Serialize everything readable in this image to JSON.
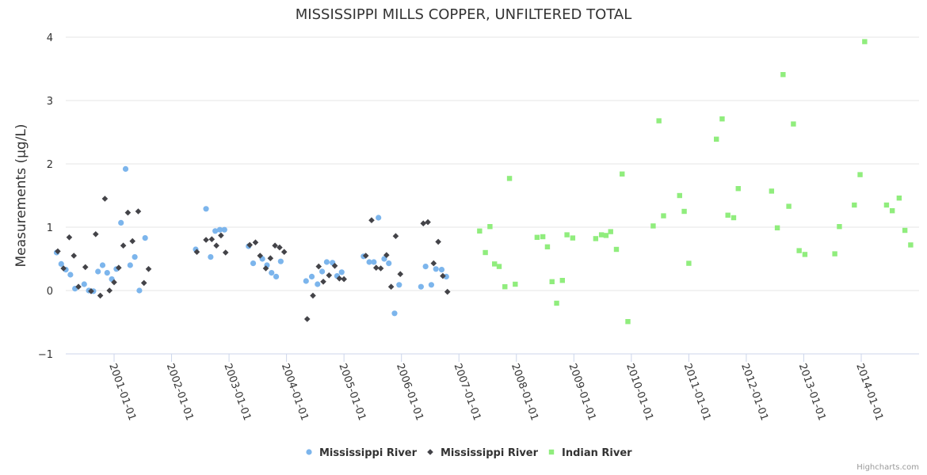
{
  "credits": "Highcharts.com",
  "chart_data": {
    "type": "scatter",
    "title": "MISSISSIPPI MILLS COPPER, UNFILTERED TOTAL",
    "ylabel": "Measurements (μg/L)",
    "xlabel": "",
    "ylim": [
      -1,
      4
    ],
    "yticks": [
      -1,
      0,
      1,
      2,
      3,
      4
    ],
    "yticklabels": [
      "−1",
      "0",
      "1",
      "2",
      "3",
      "4"
    ],
    "xlim": [
      2000.0,
      2015.0
    ],
    "xticks": [
      2001,
      2002,
      2003,
      2004,
      2005,
      2006,
      2007,
      2008,
      2009,
      2010,
      2011,
      2012,
      2013,
      2014
    ],
    "xticklabels": [
      "2001-01-01",
      "2002-01-01",
      "2003-01-01",
      "2004-01-01",
      "2005-01-01",
      "2006-01-01",
      "2007-01-01",
      "2008-01-01",
      "2009-01-01",
      "2010-01-01",
      "2011-01-01",
      "2012-01-01",
      "2013-01-01",
      "2014-01-01"
    ],
    "grid": true,
    "legend_position": "bottom-center",
    "series": [
      {
        "name": "Mississippi River",
        "marker": "circle",
        "color": "#7cb5ec",
        "points": [
          [
            2000.0,
            0.6
          ],
          [
            2000.08,
            0.42
          ],
          [
            2000.16,
            0.33
          ],
          [
            2000.24,
            0.25
          ],
          [
            2000.32,
            0.03
          ],
          [
            2000.48,
            0.1
          ],
          [
            2000.56,
            0.0
          ],
          [
            2000.64,
            -0.01
          ],
          [
            2000.72,
            0.3
          ],
          [
            2000.8,
            0.4
          ],
          [
            2000.88,
            0.28
          ],
          [
            2000.96,
            0.18
          ],
          [
            2001.04,
            0.34
          ],
          [
            2001.12,
            1.07
          ],
          [
            2001.2,
            1.92
          ],
          [
            2001.28,
            0.4
          ],
          [
            2001.36,
            0.53
          ],
          [
            2001.44,
            0.0
          ],
          [
            2001.54,
            0.83
          ],
          [
            2002.42,
            0.65
          ],
          [
            2002.6,
            1.29
          ],
          [
            2002.68,
            0.53
          ],
          [
            2002.76,
            0.94
          ],
          [
            2002.84,
            0.96
          ],
          [
            2002.92,
            0.96
          ],
          [
            2003.34,
            0.7
          ],
          [
            2003.42,
            0.43
          ],
          [
            2003.58,
            0.5
          ],
          [
            2003.66,
            0.4
          ],
          [
            2003.74,
            0.28
          ],
          [
            2003.82,
            0.22
          ],
          [
            2003.9,
            0.46
          ],
          [
            2004.34,
            0.15
          ],
          [
            2004.44,
            0.22
          ],
          [
            2004.54,
            0.1
          ],
          [
            2004.62,
            0.3
          ],
          [
            2004.7,
            0.45
          ],
          [
            2004.8,
            0.44
          ],
          [
            2004.88,
            0.23
          ],
          [
            2004.96,
            0.29
          ],
          [
            2005.34,
            0.54
          ],
          [
            2005.44,
            0.45
          ],
          [
            2005.52,
            0.45
          ],
          [
            2005.6,
            1.15
          ],
          [
            2005.7,
            0.5
          ],
          [
            2005.78,
            0.43
          ],
          [
            2005.88,
            -0.36
          ],
          [
            2005.96,
            0.09
          ],
          [
            2006.34,
            0.06
          ],
          [
            2006.42,
            0.38
          ],
          [
            2006.52,
            0.09
          ],
          [
            2006.6,
            0.34
          ],
          [
            2006.7,
            0.33
          ],
          [
            2006.78,
            0.22
          ]
        ]
      },
      {
        "name": "Mississippi River",
        "marker": "diamond",
        "color": "#434348",
        "points": [
          [
            2000.02,
            0.62
          ],
          [
            2000.12,
            0.35
          ],
          [
            2000.22,
            0.84
          ],
          [
            2000.3,
            0.55
          ],
          [
            2000.38,
            0.06
          ],
          [
            2000.5,
            0.37
          ],
          [
            2000.6,
            -0.01
          ],
          [
            2000.68,
            0.89
          ],
          [
            2000.76,
            -0.08
          ],
          [
            2000.84,
            1.45
          ],
          [
            2000.92,
            0.0
          ],
          [
            2001.0,
            0.13
          ],
          [
            2001.08,
            0.36
          ],
          [
            2001.16,
            0.71
          ],
          [
            2001.24,
            1.23
          ],
          [
            2001.32,
            0.78
          ],
          [
            2001.42,
            1.25
          ],
          [
            2001.52,
            0.12
          ],
          [
            2001.6,
            0.34
          ],
          [
            2002.44,
            0.61
          ],
          [
            2002.6,
            0.8
          ],
          [
            2002.7,
            0.81
          ],
          [
            2002.78,
            0.71
          ],
          [
            2002.86,
            0.87
          ],
          [
            2002.94,
            0.6
          ],
          [
            2003.36,
            0.72
          ],
          [
            2003.46,
            0.76
          ],
          [
            2003.54,
            0.55
          ],
          [
            2003.64,
            0.35
          ],
          [
            2003.72,
            0.51
          ],
          [
            2003.8,
            0.71
          ],
          [
            2003.88,
            0.68
          ],
          [
            2003.96,
            0.61
          ],
          [
            2004.36,
            -0.45
          ],
          [
            2004.46,
            -0.08
          ],
          [
            2004.56,
            0.38
          ],
          [
            2004.64,
            0.14
          ],
          [
            2004.74,
            0.24
          ],
          [
            2004.84,
            0.39
          ],
          [
            2004.92,
            0.19
          ],
          [
            2005.0,
            0.18
          ],
          [
            2005.38,
            0.55
          ],
          [
            2005.48,
            1.11
          ],
          [
            2005.56,
            0.36
          ],
          [
            2005.64,
            0.35
          ],
          [
            2005.74,
            0.56
          ],
          [
            2005.82,
            0.06
          ],
          [
            2005.9,
            0.86
          ],
          [
            2005.98,
            0.26
          ],
          [
            2006.38,
            1.06
          ],
          [
            2006.46,
            1.08
          ],
          [
            2006.56,
            0.43
          ],
          [
            2006.64,
            0.77
          ],
          [
            2006.72,
            0.23
          ],
          [
            2006.8,
            -0.02
          ]
        ]
      },
      {
        "name": "Indian River",
        "marker": "square",
        "color": "#90ed7d",
        "points": [
          [
            2007.36,
            0.94
          ],
          [
            2007.46,
            0.6
          ],
          [
            2007.54,
            1.01
          ],
          [
            2007.62,
            0.42
          ],
          [
            2007.7,
            0.38
          ],
          [
            2007.8,
            0.06
          ],
          [
            2007.88,
            1.77
          ],
          [
            2007.98,
            0.1
          ],
          [
            2008.36,
            0.84
          ],
          [
            2008.46,
            0.85
          ],
          [
            2008.54,
            0.69
          ],
          [
            2008.62,
            0.14
          ],
          [
            2008.7,
            -0.2
          ],
          [
            2008.8,
            0.16
          ],
          [
            2008.88,
            0.88
          ],
          [
            2008.98,
            0.83
          ],
          [
            2009.38,
            0.82
          ],
          [
            2009.48,
            0.88
          ],
          [
            2009.56,
            0.87
          ],
          [
            2009.64,
            0.93
          ],
          [
            2009.74,
            0.65
          ],
          [
            2009.84,
            1.84
          ],
          [
            2009.94,
            -0.49
          ],
          [
            2010.38,
            1.02
          ],
          [
            2010.48,
            2.68
          ],
          [
            2010.56,
            1.18
          ],
          [
            2010.84,
            1.5
          ],
          [
            2010.92,
            1.25
          ],
          [
            2011.0,
            0.43
          ],
          [
            2011.48,
            2.39
          ],
          [
            2011.58,
            2.71
          ],
          [
            2011.68,
            1.19
          ],
          [
            2011.78,
            1.15
          ],
          [
            2011.86,
            1.61
          ],
          [
            2012.44,
            1.57
          ],
          [
            2012.54,
            0.99
          ],
          [
            2012.64,
            3.41
          ],
          [
            2012.74,
            1.33
          ],
          [
            2012.82,
            2.63
          ],
          [
            2012.92,
            0.63
          ],
          [
            2013.02,
            0.57
          ],
          [
            2013.54,
            0.58
          ],
          [
            2013.62,
            1.01
          ],
          [
            2013.88,
            1.35
          ],
          [
            2013.98,
            1.83
          ],
          [
            2014.06,
            3.93
          ],
          [
            2014.44,
            1.35
          ],
          [
            2014.54,
            1.26
          ],
          [
            2014.66,
            1.46
          ],
          [
            2014.76,
            0.95
          ],
          [
            2014.86,
            0.72
          ]
        ]
      }
    ]
  }
}
